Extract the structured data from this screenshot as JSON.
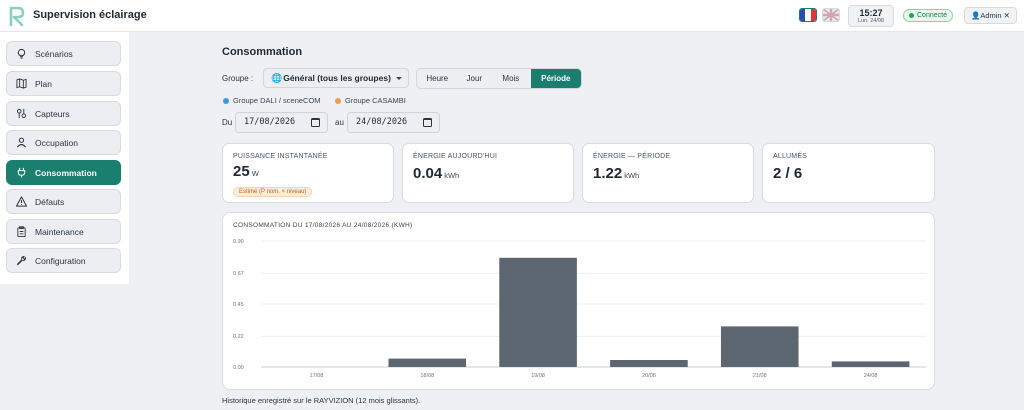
{
  "app": {
    "title": "Supervision éclairage"
  },
  "header": {
    "time": "15:27",
    "date": "Lun. 24/08",
    "status": "Connecté",
    "user": "Admin ✕"
  },
  "sidebar": {
    "items": [
      {
        "label": "Scénarios",
        "icon": "lightbulb-icon"
      },
      {
        "label": "Plan",
        "icon": "map-icon"
      },
      {
        "label": "Capteurs",
        "icon": "sensors-icon"
      },
      {
        "label": "Occupation",
        "icon": "person-icon"
      },
      {
        "label": "Consommation",
        "icon": "plug-icon",
        "active": true
      },
      {
        "label": "Défauts",
        "icon": "warning-icon"
      },
      {
        "label": "Maintenance",
        "icon": "clipboard-icon"
      },
      {
        "label": "Configuration",
        "icon": "wrench-icon"
      }
    ]
  },
  "main": {
    "title": "Consommation",
    "group_label": "Groupe :",
    "group_value": "Général (tous les groupes)",
    "periods": [
      "Heure",
      "Jour",
      "Mois",
      "Période"
    ],
    "active_period": "Période",
    "legend": [
      {
        "label": "Groupe DALI / sceneCOM",
        "color": "#3b9ae1"
      },
      {
        "label": "Groupe CASAMBI",
        "color": "#f0a040"
      }
    ],
    "from_label": "Du",
    "from_value": "17/08/2026",
    "to_label": "au",
    "to_value": "24/08/2026",
    "kpis": [
      {
        "label": "PUISSANCE INSTANTANÉE",
        "value": "25",
        "unit": "W",
        "badge": "Estimé (P nom. × niveau)"
      },
      {
        "label": "ÉNERGIE AUJOURD'HUI",
        "value": "0.04",
        "unit": "kWh"
      },
      {
        "label": "ÉNERGIE — PÉRIODE",
        "value": "1.22",
        "unit": "kWh"
      },
      {
        "label": "ALLUMÉS",
        "value": "2 / 6",
        "unit": ""
      }
    ],
    "footnote": "Historique enregistré sur le RAYVIZION (12 mois glissants)."
  },
  "chart_data": {
    "type": "bar",
    "title": "CONSOMMATION DU 17/08/2026 AU 24/08/2026 (KWH)",
    "categories": [
      "17/08",
      "18/08",
      "19/08",
      "20/08",
      "21/08",
      "24/08"
    ],
    "values": [
      0.0,
      0.06,
      0.78,
      0.05,
      0.29,
      0.04
    ],
    "yticks": [
      "0.00",
      "0.22",
      "0.45",
      "0.67",
      "0.90"
    ],
    "ylim": [
      0,
      0.9
    ],
    "bar_color": "#5b6670",
    "grid": true
  }
}
